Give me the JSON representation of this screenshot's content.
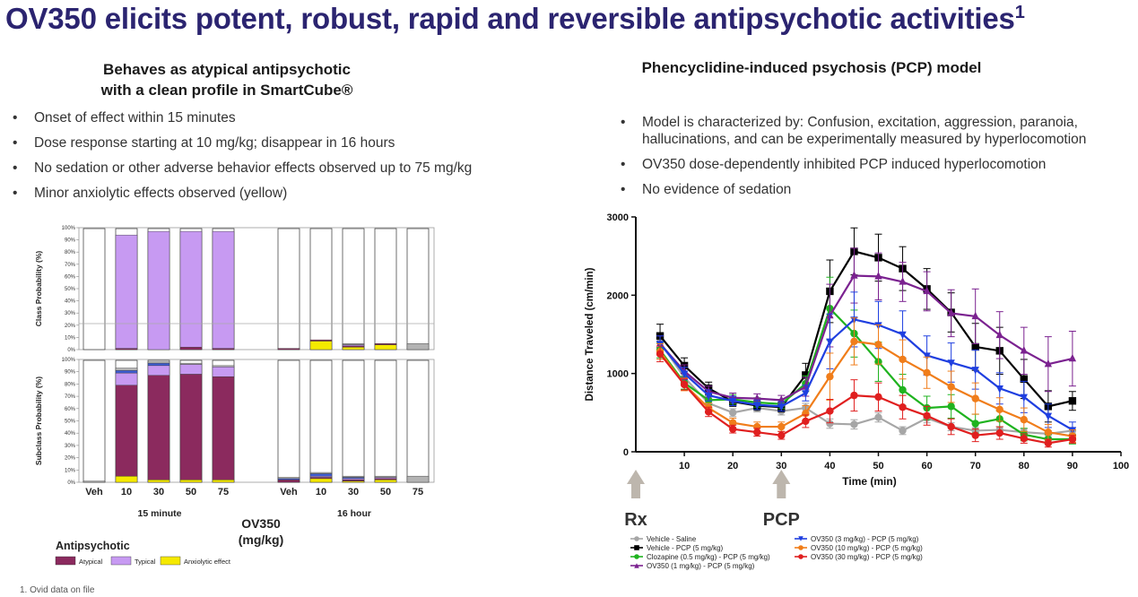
{
  "title": {
    "text": "OV350 elicits potent, robust, rapid and reversible antipsychotic activities",
    "sup": "1"
  },
  "left": {
    "heading_line1": "Behaves as atypical antipsychotic",
    "heading_line2": "with a clean profile in SmartCube®",
    "bullets": [
      "Onset of effect within 15 minutes",
      "Dose response starting at 10 mg/kg; disappear in 16 hours",
      "No sedation or other adverse behavior effects observed up to 75 mg/kg",
      "Minor anxiolytic effects observed (yellow)"
    ]
  },
  "right": {
    "heading": "Phencyclidine-induced psychosis (PCP) model",
    "bullets": [
      "Model is characterized by: Confusion, excitation, aggression, paranoia, hallucinations, and can be  experimentally measured by hyperlocomotion",
      "OV350 dose-dependently inhibited PCP induced hyperlocomotion",
      "No evidence of sedation"
    ]
  },
  "footnote": "1. Ovid data on file",
  "bullet_symbol": "•",
  "chart_data": [
    {
      "type": "bar",
      "subtype": "stacked-100",
      "panels": [
        "Class Probability (%)",
        "Subclass Probability (%)"
      ],
      "categories": [
        "Veh",
        "10",
        "30",
        "50",
        "75",
        "Veh",
        "10",
        "30",
        "50",
        "75"
      ],
      "groups": [
        {
          "label": "15 minute",
          "count": 5
        },
        {
          "label": "16 hour",
          "count": 5
        }
      ],
      "group_axis_label_line1": "OV350",
      "group_axis_label_line2": "(mg/kg)",
      "legend_title": "Antipsychotic",
      "legend_items": [
        "Atypical",
        "Typical",
        "Anxiolytic effect"
      ],
      "colors": {
        "atypical": "#8b2a5e",
        "typical": "#c79af2",
        "anxiolytic": "#f5e900",
        "other": "#ffffff",
        "gray": "#b3b3b3",
        "blue": "#3f5fd8",
        "green": "#41b35a",
        "light_blue": "#66cce6"
      },
      "yticks": [
        "0%",
        "10%",
        "20%",
        "30%",
        "40%",
        "50%",
        "60%",
        "70%",
        "80%",
        "90%",
        "100%"
      ],
      "class_panel": [
        {
          "cat": "Veh",
          "typical": 0,
          "anxiolytic": 0,
          "atypical": 0,
          "gray": 0
        },
        {
          "cat": "10",
          "typical": 93,
          "anxiolytic": 0,
          "atypical": 1,
          "gray": 0
        },
        {
          "cat": "30",
          "typical": 97,
          "anxiolytic": 0,
          "atypical": 0,
          "gray": 0
        },
        {
          "cat": "50",
          "typical": 95,
          "anxiolytic": 0,
          "atypical": 2,
          "gray": 0
        },
        {
          "cat": "75",
          "typical": 96,
          "anxiolytic": 0,
          "atypical": 1,
          "gray": 0
        },
        {
          "cat": "Veh",
          "typical": 0,
          "anxiolytic": 0,
          "atypical": 1,
          "gray": 0
        },
        {
          "cat": "10",
          "typical": 0,
          "anxiolytic": 7,
          "atypical": 1,
          "gray": 0
        },
        {
          "cat": "30",
          "typical": 1,
          "anxiolytic": 2,
          "atypical": 1,
          "gray": 1
        },
        {
          "cat": "50",
          "typical": 0,
          "anxiolytic": 4,
          "atypical": 1,
          "gray": 0
        },
        {
          "cat": "75",
          "typical": 0,
          "anxiolytic": 0,
          "atypical": 0,
          "gray": 5
        }
      ],
      "subclass_panel": [
        {
          "cat": "Veh",
          "anxiolytic": 0,
          "atypical": 0,
          "typical": 0,
          "blue": 0,
          "gray": 1
        },
        {
          "cat": "10",
          "anxiolytic": 5,
          "atypical": 74,
          "typical": 10,
          "blue": 2,
          "gray": 2
        },
        {
          "cat": "30",
          "anxiolytic": 2,
          "atypical": 85,
          "typical": 8,
          "blue": 2,
          "gray": 1
        },
        {
          "cat": "50",
          "anxiolytic": 2,
          "atypical": 86,
          "typical": 8,
          "blue": 0,
          "gray": 1
        },
        {
          "cat": "75",
          "anxiolytic": 2,
          "atypical": 84,
          "typical": 8,
          "blue": 0,
          "gray": 1
        },
        {
          "cat": "Veh",
          "anxiolytic": 0,
          "atypical": 2,
          "typical": 0,
          "blue": 1,
          "gray": 1
        },
        {
          "cat": "10",
          "anxiolytic": 3,
          "atypical": 1,
          "typical": 1,
          "blue": 2,
          "gray": 1
        },
        {
          "cat": "30",
          "anxiolytic": 1,
          "atypical": 1,
          "typical": 1,
          "blue": 1,
          "gray": 1
        },
        {
          "cat": "50",
          "anxiolytic": 2,
          "atypical": 1,
          "typical": 1,
          "blue": 0,
          "gray": 1
        },
        {
          "cat": "75",
          "anxiolytic": 0,
          "atypical": 0,
          "typical": 0,
          "blue": 0,
          "gray": 5
        }
      ]
    },
    {
      "type": "line",
      "xlabel": "Time (min)",
      "ylabel": "Distance Traveled (cm/min)",
      "xlim": [
        0,
        100
      ],
      "ylim": [
        0,
        3000
      ],
      "xticks": [
        10,
        20,
        30,
        40,
        50,
        60,
        70,
        80,
        90,
        100
      ],
      "yticks": [
        0,
        1000,
        2000,
        3000
      ],
      "x": [
        5,
        10,
        15,
        20,
        25,
        30,
        35,
        40,
        45,
        50,
        55,
        60,
        65,
        70,
        75,
        80,
        85,
        90
      ],
      "markers": [
        {
          "label": "Rx",
          "x": 0
        },
        {
          "label": "PCP",
          "x": 30
        }
      ],
      "series": [
        {
          "name": "Vehicle - Saline",
          "color": "#a6a6a6",
          "marker": "circle",
          "values": [
            1400,
            950,
            620,
            500,
            560,
            520,
            560,
            360,
            350,
            440,
            270,
            430,
            320,
            270,
            280,
            250,
            230,
            270
          ],
          "errors": [
            90,
            70,
            60,
            50,
            50,
            50,
            60,
            60,
            60,
            60,
            50,
            60,
            50,
            40,
            40,
            40,
            40,
            40
          ]
        },
        {
          "name": "Vehicle - PCP (5 mg/kg)",
          "color": "#000000",
          "marker": "square",
          "values": [
            1480,
            1100,
            810,
            640,
            590,
            570,
            980,
            2050,
            2560,
            2480,
            2340,
            2080,
            1780,
            1340,
            1290,
            930,
            580,
            650
          ],
          "errors": [
            150,
            100,
            80,
            60,
            60,
            60,
            150,
            400,
            300,
            300,
            280,
            260,
            250,
            300,
            300,
            250,
            200,
            120
          ]
        },
        {
          "name": "Clozapine (0.5 mg/kg) - PCP (5 mg/kg)",
          "color": "#1fb31f",
          "marker": "circle",
          "values": [
            1300,
            880,
            660,
            670,
            630,
            610,
            870,
            1830,
            1510,
            1150,
            790,
            560,
            580,
            360,
            420,
            220,
            160,
            160
          ],
          "errors": [
            100,
            80,
            60,
            60,
            60,
            60,
            100,
            400,
            300,
            250,
            200,
            150,
            150,
            120,
            100,
            80,
            60,
            60
          ]
        },
        {
          "name": "OV350 (1 mg/kg) - PCP (5 mg/kg)",
          "color": "#7b2290",
          "marker": "triangle-up",
          "values": [
            1380,
            1030,
            770,
            690,
            680,
            660,
            830,
            1740,
            2250,
            2240,
            2170,
            2050,
            1770,
            1730,
            1490,
            1290,
            1120,
            1190
          ],
          "errors": [
            100,
            80,
            70,
            60,
            60,
            60,
            120,
            400,
            350,
            300,
            250,
            250,
            300,
            350,
            300,
            300,
            350,
            350
          ]
        },
        {
          "name": "OV350 (3 mg/kg) - PCP (5 mg/kg)",
          "color": "#1f3fe0",
          "marker": "triangle-down",
          "values": [
            1380,
            1000,
            720,
            650,
            600,
            580,
            750,
            1410,
            1690,
            1620,
            1500,
            1230,
            1140,
            1050,
            810,
            700,
            460,
            280
          ],
          "errors": [
            100,
            80,
            70,
            60,
            60,
            60,
            100,
            350,
            350,
            300,
            300,
            250,
            250,
            250,
            200,
            200,
            150,
            100
          ]
        },
        {
          "name": "OV350 (10 mg/kg) - PCP (5 mg/kg)",
          "color": "#f07d1a",
          "marker": "circle",
          "values": [
            1280,
            860,
            560,
            370,
            320,
            320,
            490,
            960,
            1410,
            1370,
            1180,
            1010,
            830,
            680,
            540,
            410,
            250,
            200
          ],
          "errors": [
            100,
            80,
            60,
            60,
            60,
            60,
            100,
            300,
            300,
            250,
            250,
            200,
            200,
            200,
            150,
            150,
            100,
            80
          ]
        },
        {
          "name": "OV350 (30 mg/kg) - PCP (5 mg/kg)",
          "color": "#e01f1f",
          "marker": "circle",
          "values": [
            1250,
            860,
            510,
            290,
            250,
            210,
            390,
            520,
            720,
            700,
            570,
            460,
            320,
            210,
            240,
            170,
            110,
            160
          ],
          "errors": [
            100,
            70,
            60,
            50,
            50,
            50,
            80,
            150,
            200,
            180,
            150,
            120,
            100,
            80,
            80,
            60,
            50,
            50
          ]
        }
      ]
    }
  ]
}
